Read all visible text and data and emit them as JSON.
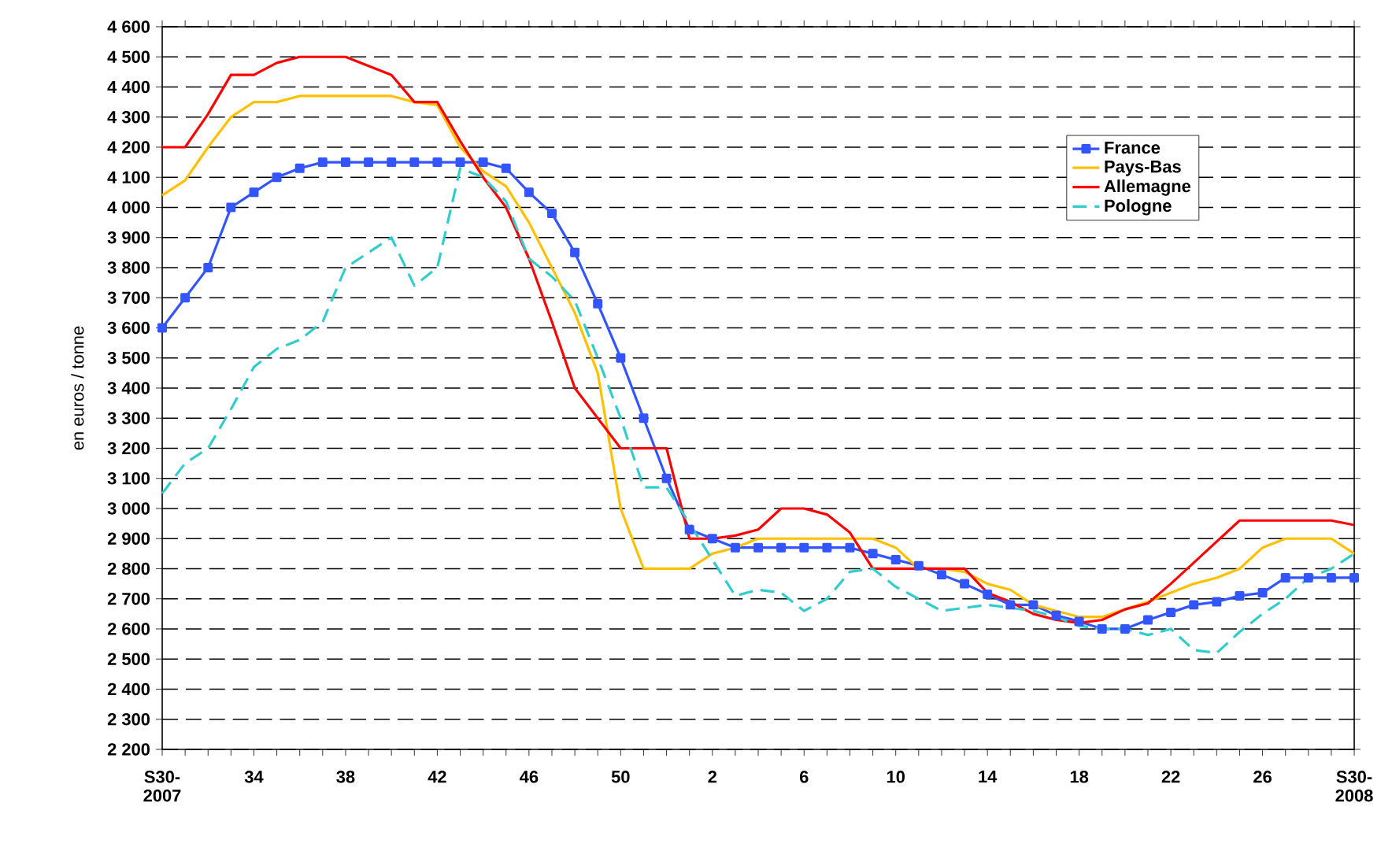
{
  "chart_data": {
    "type": "line",
    "ylabel": "en euros / tonne",
    "categories": [
      "S30-2007",
      null,
      null,
      null,
      "34",
      null,
      null,
      null,
      "38",
      null,
      null,
      null,
      "42",
      null,
      null,
      null,
      "46",
      null,
      null,
      null,
      "50",
      null,
      null,
      null,
      "2",
      null,
      null,
      null,
      "6",
      null,
      null,
      null,
      "10",
      null,
      null,
      null,
      "14",
      null,
      null,
      null,
      "18",
      null,
      null,
      null,
      "22",
      null,
      null,
      null,
      "26",
      null,
      null,
      null,
      "S30-2008"
    ],
    "ylim": [
      2200,
      4600
    ],
    "yticks": [
      {
        "value": 2200,
        "label": "2 200"
      },
      {
        "value": 2300,
        "label": "2 300"
      },
      {
        "value": 2400,
        "label": "2 400"
      },
      {
        "value": 2500,
        "label": "2 500"
      },
      {
        "value": 2600,
        "label": "2 600"
      },
      {
        "value": 2700,
        "label": "2 700"
      },
      {
        "value": 2800,
        "label": "2 800"
      },
      {
        "value": 2900,
        "label": "2 900"
      },
      {
        "value": 3000,
        "label": "3 000"
      },
      {
        "value": 3100,
        "label": "3 100"
      },
      {
        "value": 3200,
        "label": "3 200"
      },
      {
        "value": 3300,
        "label": "3 300"
      },
      {
        "value": 3400,
        "label": "3 400"
      },
      {
        "value": 3500,
        "label": "3 500"
      },
      {
        "value": 3600,
        "label": "3 600"
      },
      {
        "value": 3700,
        "label": "3 700"
      },
      {
        "value": 3800,
        "label": "3 800"
      },
      {
        "value": 3900,
        "label": "3 900"
      },
      {
        "value": 4000,
        "label": "4 000"
      },
      {
        "value": 4100,
        "label": "4 100"
      },
      {
        "value": 4200,
        "label": "4 200"
      },
      {
        "value": 4300,
        "label": "4 300"
      },
      {
        "value": 4400,
        "label": "4 400"
      },
      {
        "value": 4500,
        "label": "4 500"
      },
      {
        "value": 4600,
        "label": "4 600"
      }
    ],
    "grid": "y",
    "legend": "top right",
    "series": [
      {
        "name": "France",
        "color": "#3355ff",
        "marker": "square",
        "values": [
          3600,
          3700,
          3800,
          4000,
          4050,
          4100,
          4130,
          4150,
          4150,
          4150,
          4150,
          4150,
          4150,
          4150,
          4150,
          4130,
          4050,
          3980,
          3850,
          3680,
          3500,
          3300,
          3100,
          2930,
          2900,
          2870,
          2870,
          2870,
          2870,
          2870,
          2870,
          2850,
          2830,
          2810,
          2780,
          2750,
          2715,
          2680,
          2680,
          2645,
          2625,
          2600,
          2600,
          2630,
          2655,
          2680,
          2690,
          2710,
          2720,
          2770,
          2770,
          2770,
          2770
        ]
      },
      {
        "name": "Pays-Bas",
        "color": "#ffc000",
        "values": [
          4040,
          4090,
          4200,
          4300,
          4350,
          4350,
          4370,
          4370,
          4370,
          4370,
          4370,
          4350,
          4340,
          4200,
          4120,
          4070,
          3950,
          3800,
          3650,
          3450,
          3000,
          2800,
          2800,
          2800,
          2850,
          2870,
          2900,
          2900,
          2900,
          2900,
          2900,
          2900,
          2870,
          2800,
          2800,
          2790,
          2750,
          2730,
          2680,
          2660,
          2640,
          2640,
          2665,
          2690,
          2720,
          2750,
          2770,
          2800,
          2870,
          2900,
          2900,
          2900,
          2850
        ]
      },
      {
        "name": "Allemagne",
        "color": "#ff0000",
        "values": [
          4200,
          4200,
          4310,
          4440,
          4440,
          4480,
          4500,
          4500,
          4500,
          4470,
          4440,
          4350,
          4350,
          4220,
          4100,
          4000,
          3830,
          3620,
          3400,
          3300,
          3200,
          3200,
          3200,
          2900,
          2900,
          2910,
          2930,
          3000,
          3000,
          2980,
          2920,
          2800,
          2800,
          2800,
          2800,
          2800,
          2720,
          2690,
          2650,
          2630,
          2620,
          2630,
          2665,
          2685,
          2750,
          2820,
          2890,
          2960,
          2960,
          2960,
          2960,
          2960,
          2945
        ]
      },
      {
        "name": "Pologne",
        "color": "#33cccc",
        "line_style": "dashed",
        "values": [
          3050,
          3150,
          3200,
          3330,
          3470,
          3530,
          3560,
          3620,
          3800,
          3850,
          3900,
          3740,
          3800,
          4130,
          4100,
          4020,
          3830,
          3770,
          3690,
          3500,
          3300,
          3070,
          3070,
          2950,
          2830,
          2710,
          2730,
          2720,
          2660,
          2700,
          2790,
          2800,
          2740,
          2700,
          2660,
          2670,
          2680,
          2670,
          2660,
          2640,
          2610,
          2600,
          2600,
          2580,
          2600,
          2530,
          2520,
          2590,
          2650,
          2700,
          2770,
          2800,
          2850
        ]
      }
    ]
  }
}
